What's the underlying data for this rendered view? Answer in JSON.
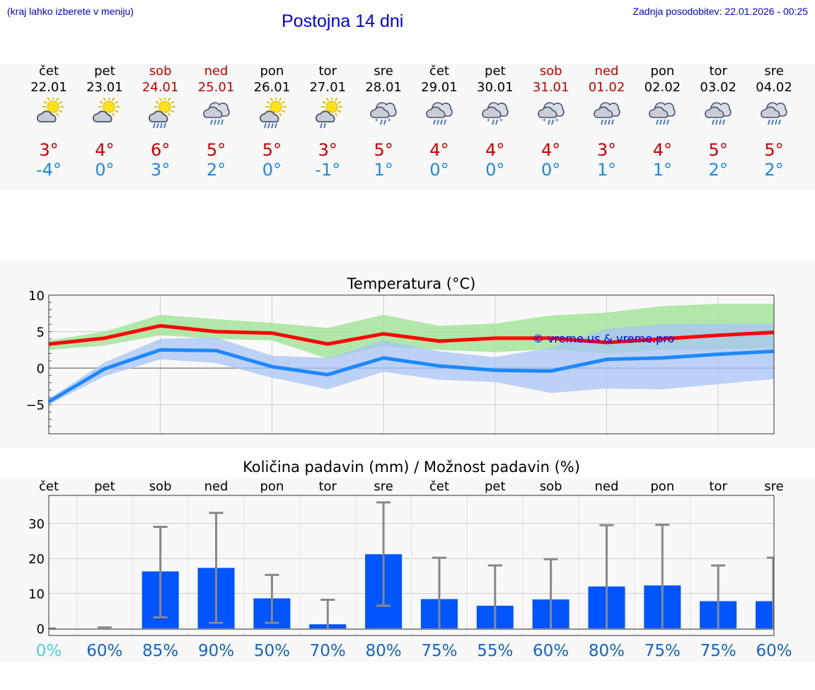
{
  "header": {
    "note": "(kraj lahko izberete v meniju)",
    "title": "Postojna 14 dni",
    "updated": "Zadnja posodobitev: 22.01.2026 - 00:25"
  },
  "days": [
    {
      "name": "čet",
      "date": "22.01",
      "weekend": false,
      "icon": "sun-cloud",
      "tmax": "3°",
      "tmin": "-4°"
    },
    {
      "name": "pet",
      "date": "23.01",
      "weekend": false,
      "icon": "sun-cloud",
      "tmax": "4°",
      "tmin": "0°"
    },
    {
      "name": "sob",
      "date": "24.01",
      "weekend": true,
      "icon": "sun-cloud-rain",
      "tmax": "6°",
      "tmin": "3°"
    },
    {
      "name": "ned",
      "date": "25.01",
      "weekend": true,
      "icon": "cloud-rain",
      "tmax": "5°",
      "tmin": "2°"
    },
    {
      "name": "pon",
      "date": "26.01",
      "weekend": false,
      "icon": "sun-cloud-rain",
      "tmax": "5°",
      "tmin": "0°"
    },
    {
      "name": "tor",
      "date": "27.01",
      "weekend": false,
      "icon": "sun-cloud-drizzle",
      "tmax": "3°",
      "tmin": "-1°"
    },
    {
      "name": "sre",
      "date": "28.01",
      "weekend": false,
      "icon": "cloud-sleet",
      "tmax": "5°",
      "tmin": "1°"
    },
    {
      "name": "čet",
      "date": "29.01",
      "weekend": false,
      "icon": "cloud-rain",
      "tmax": "4°",
      "tmin": "0°"
    },
    {
      "name": "pet",
      "date": "30.01",
      "weekend": false,
      "icon": "cloud-sleet",
      "tmax": "4°",
      "tmin": "0°"
    },
    {
      "name": "sob",
      "date": "31.01",
      "weekend": true,
      "icon": "cloud-sleet",
      "tmax": "4°",
      "tmin": "0°"
    },
    {
      "name": "ned",
      "date": "01.02",
      "weekend": true,
      "icon": "cloud-rain",
      "tmax": "3°",
      "tmin": "1°"
    },
    {
      "name": "pon",
      "date": "02.02",
      "weekend": false,
      "icon": "cloud-rain",
      "tmax": "4°",
      "tmin": "1°"
    },
    {
      "name": "tor",
      "date": "03.02",
      "weekend": false,
      "icon": "cloud-rain",
      "tmax": "5°",
      "tmin": "2°"
    },
    {
      "name": "sre",
      "date": "04.02",
      "weekend": false,
      "icon": "cloud-rain",
      "tmax": "5°",
      "tmin": "2°"
    }
  ],
  "colors": {
    "max_line": "#ff0000",
    "min_line": "#1e88ff",
    "max_band": "#a8e4a0",
    "min_band": "#a8c4f4",
    "overlap_band": "#7cc8a8",
    "bar": "#0055ff",
    "error": "#888888",
    "pct": "#1565c0",
    "pct_zero": "#4dd0e1"
  },
  "chart_data": [
    {
      "type": "line",
      "title": "Temperatura (°C)",
      "watermark": "© vreme.us & vreme.pro",
      "x": [
        0,
        1,
        2,
        3,
        4,
        5,
        6,
        7,
        8,
        9,
        10,
        11,
        12,
        13
      ],
      "ylim": [
        -9,
        10
      ],
      "yticks": [
        10,
        5,
        0,
        -5
      ],
      "ytick_labels": [
        "10",
        "5",
        "0",
        "−5"
      ],
      "series": [
        {
          "name": "max",
          "values": [
            3.3,
            4.1,
            5.8,
            5.0,
            4.8,
            3.3,
            4.7,
            3.7,
            4.1,
            4.1,
            3.5,
            4.0,
            4.5,
            4.9
          ]
        },
        {
          "name": "min",
          "values": [
            -4.6,
            -0.1,
            2.5,
            2.4,
            0.2,
            -0.9,
            1.4,
            0.3,
            -0.3,
            -0.4,
            1.2,
            1.4,
            1.9,
            2.3
          ]
        }
      ],
      "bands": [
        {
          "name": "max_range",
          "low": [
            2.5,
            3.1,
            4.5,
            4.0,
            3.8,
            1.3,
            3.0,
            2.5,
            2.2,
            2.6,
            2.0,
            2.5,
            2.6,
            2.8
          ],
          "high": [
            3.8,
            5.0,
            7.3,
            6.7,
            6.2,
            5.5,
            7.3,
            5.8,
            6.1,
            7.2,
            7.6,
            8.5,
            8.8,
            8.8
          ]
        },
        {
          "name": "min_range",
          "low": [
            -5.0,
            -1.1,
            1.2,
            0.7,
            -1.3,
            -2.9,
            -0.5,
            -1.6,
            -1.9,
            -3.4,
            -2.8,
            -2.9,
            -2.2,
            -1.5
          ],
          "high": [
            -4.2,
            0.8,
            4.0,
            4.2,
            1.7,
            1.4,
            3.8,
            2.3,
            1.5,
            2.8,
            5.4,
            6.0,
            6.1,
            6.1
          ]
        }
      ]
    },
    {
      "type": "bar",
      "title": "Količina padavin (mm) / Možnost padavin (%)",
      "categories": [
        "čet",
        "pet",
        "sob",
        "ned",
        "pon",
        "tor",
        "sre",
        "čet",
        "pet",
        "sob",
        "ned",
        "pon",
        "tor",
        "sre"
      ],
      "values": [
        0,
        0,
        16.3,
        17.3,
        8.6,
        1.2,
        21.2,
        8.4,
        6.5,
        8.3,
        12.0,
        12.3,
        7.8,
        7.8
      ],
      "err_low": [
        0,
        0,
        3.2,
        1.6,
        1.6,
        0,
        6.5,
        0,
        0,
        0,
        0,
        0,
        0,
        0
      ],
      "err_high": [
        0,
        0.3,
        29.0,
        33.0,
        15.3,
        8.2,
        36.0,
        20.2,
        18.0,
        19.8,
        29.5,
        29.6,
        18.0,
        20.2
      ],
      "probability": [
        "0%",
        "60%",
        "85%",
        "90%",
        "50%",
        "70%",
        "80%",
        "75%",
        "55%",
        "60%",
        "80%",
        "75%",
        "75%",
        "60%"
      ],
      "ylim": [
        -2,
        38
      ],
      "yticks": [
        30,
        20,
        10,
        0
      ],
      "ytick_labels": [
        "30",
        "20",
        "10",
        "0"
      ]
    }
  ]
}
